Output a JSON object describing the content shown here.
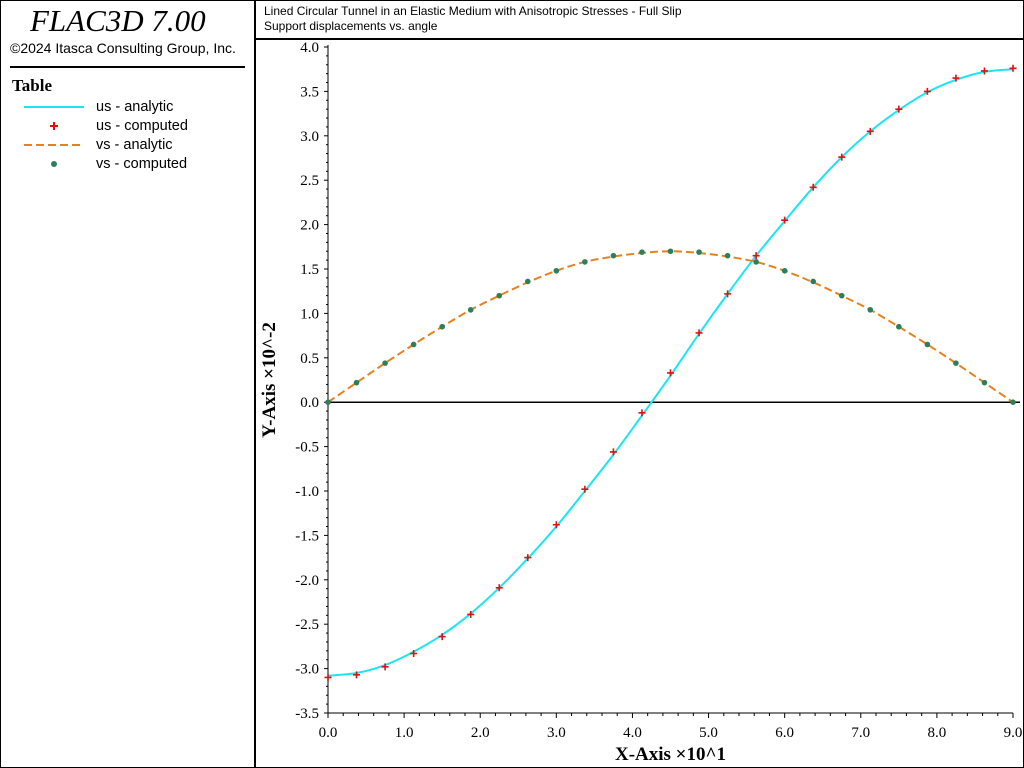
{
  "app": {
    "title": "FLAC3D 7.00",
    "copyright": "©2024 Itasca Consulting Group, Inc."
  },
  "legend": {
    "title": "Table",
    "items": [
      {
        "label": "us - analytic",
        "style": "solid-line",
        "color": "#19e6f0"
      },
      {
        "label": "us - computed",
        "style": "plus-marker",
        "color": "#e01010"
      },
      {
        "label": "vs - analytic",
        "style": "dashed-line",
        "color": "#e6821e"
      },
      {
        "label": "vs - computed",
        "style": "dot-marker",
        "color": "#2e7d5b"
      }
    ]
  },
  "chart_data": {
    "type": "line",
    "title": "Lined Circular Tunnel in an Elastic Medium with Anisotropic Stresses - Full Slip",
    "subtitle": "Support displacements vs. angle",
    "xlabel": "X-Axis ×10^1",
    "ylabel": "Y-Axis ×10^-2",
    "xlim": [
      0.0,
      9.0
    ],
    "ylim": [
      -3.5,
      4.0
    ],
    "x_ticks": [
      "0.0",
      "1.0",
      "2.0",
      "3.0",
      "4.0",
      "5.0",
      "6.0",
      "7.0",
      "8.0",
      "9.0"
    ],
    "y_ticks": [
      "-3.5",
      "-3.0",
      "-2.5",
      "-2.0",
      "-1.5",
      "-1.0",
      "-0.5",
      "0.0",
      "0.5",
      "1.0",
      "1.5",
      "2.0",
      "2.5",
      "3.0",
      "3.5",
      "4.0"
    ],
    "grid": false,
    "zero_line": true,
    "series": [
      {
        "name": "us - analytic",
        "style": "solid",
        "color": "#19e6f0",
        "x": [
          0.0,
          0.375,
          0.75,
          1.125,
          1.5,
          1.875,
          2.25,
          2.625,
          3.0,
          3.375,
          3.75,
          4.125,
          4.5,
          4.875,
          5.25,
          5.625,
          6.0,
          6.375,
          6.75,
          7.125,
          7.5,
          7.875,
          8.25,
          8.625,
          9.0
        ],
        "y": [
          -3.08,
          -3.05,
          -2.96,
          -2.81,
          -2.62,
          -2.38,
          -2.09,
          -1.76,
          -1.4,
          -1.0,
          -0.59,
          -0.15,
          0.3,
          0.77,
          1.22,
          1.65,
          2.04,
          2.42,
          2.76,
          3.05,
          3.29,
          3.49,
          3.63,
          3.72,
          3.75
        ]
      },
      {
        "name": "us - computed",
        "style": "plus",
        "color": "#e01010",
        "x": [
          0.0,
          0.375,
          0.75,
          1.125,
          1.5,
          1.875,
          2.25,
          2.625,
          3.0,
          3.375,
          3.75,
          4.125,
          4.5,
          4.875,
          5.25,
          5.625,
          6.0,
          6.375,
          6.75,
          7.125,
          7.5,
          7.875,
          8.25,
          8.625,
          9.0
        ],
        "y": [
          -3.1,
          -3.07,
          -2.98,
          -2.83,
          -2.64,
          -2.39,
          -2.09,
          -1.75,
          -1.38,
          -0.98,
          -0.56,
          -0.12,
          0.33,
          0.78,
          1.22,
          1.65,
          2.05,
          2.42,
          2.76,
          3.05,
          3.3,
          3.5,
          3.65,
          3.73,
          3.76
        ]
      },
      {
        "name": "vs - analytic",
        "style": "dashed",
        "color": "#e6821e",
        "x": [
          0.0,
          0.375,
          0.75,
          1.125,
          1.5,
          1.875,
          2.25,
          2.625,
          3.0,
          3.375,
          3.75,
          4.125,
          4.5,
          4.875,
          5.25,
          5.625,
          6.0,
          6.375,
          6.75,
          7.125,
          7.5,
          7.875,
          8.25,
          8.625,
          9.0
        ],
        "y": [
          0.0,
          0.22,
          0.44,
          0.65,
          0.85,
          1.04,
          1.2,
          1.35,
          1.48,
          1.58,
          1.64,
          1.68,
          1.7,
          1.68,
          1.64,
          1.58,
          1.48,
          1.35,
          1.2,
          1.04,
          0.85,
          0.65,
          0.44,
          0.22,
          0.0
        ]
      },
      {
        "name": "vs - computed",
        "style": "dot",
        "color": "#2e7d5b",
        "x": [
          0.0,
          0.375,
          0.75,
          1.125,
          1.5,
          1.875,
          2.25,
          2.625,
          3.0,
          3.375,
          3.75,
          4.125,
          4.5,
          4.875,
          5.25,
          5.625,
          6.0,
          6.375,
          6.75,
          7.125,
          7.5,
          7.875,
          8.25,
          8.625,
          9.0
        ],
        "y": [
          0.0,
          0.22,
          0.44,
          0.65,
          0.85,
          1.04,
          1.2,
          1.36,
          1.48,
          1.58,
          1.65,
          1.69,
          1.7,
          1.69,
          1.65,
          1.58,
          1.48,
          1.36,
          1.2,
          1.04,
          0.85,
          0.65,
          0.44,
          0.22,
          0.0
        ]
      }
    ]
  }
}
